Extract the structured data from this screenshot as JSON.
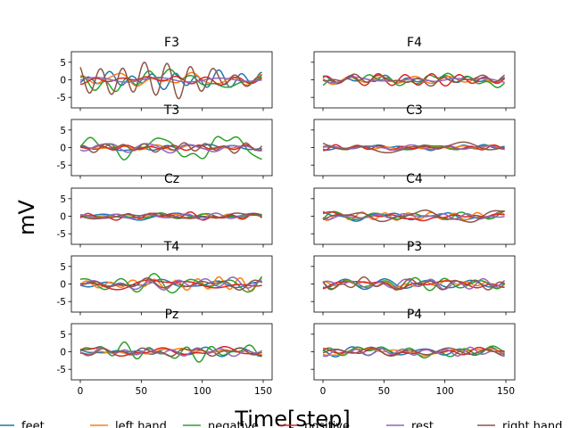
{
  "figure": {
    "ylabel": "mV",
    "xlabel": "Time[step]"
  },
  "legend": {
    "entries": [
      {
        "name": "feet",
        "color": "#1f77b4"
      },
      {
        "name": "left hand",
        "color": "#ff7f0e"
      },
      {
        "name": "negative",
        "color": "#2ca02c"
      },
      {
        "name": "positive",
        "color": "#d62728"
      },
      {
        "name": "rest",
        "color": "#9467bd"
      },
      {
        "name": "right hand",
        "color": "#8c564b"
      }
    ]
  },
  "chart_data": {
    "type": "line",
    "layout": "5x2 subplot grid, shared x and y axes",
    "panels": [
      "F3",
      "F4",
      "T3",
      "C3",
      "Cz",
      "C4",
      "T4",
      "P3",
      "Pz",
      "P4"
    ],
    "x": {
      "range": [
        0,
        150
      ],
      "ticks": [
        0,
        50,
        100,
        150
      ]
    },
    "y": {
      "range": [
        -8,
        8
      ],
      "ticks": [
        -5,
        0,
        5
      ]
    },
    "series_names": [
      "feet",
      "left hand",
      "negative",
      "positive",
      "rest",
      "right hand"
    ],
    "amplitude_by_panel": {
      "F3": [
        1.8,
        1.6,
        2.2,
        1.2,
        1.3,
        3.2
      ],
      "F4": [
        1.0,
        1.0,
        1.4,
        1.3,
        1.0,
        1.2
      ],
      "T3": [
        1.1,
        1.3,
        2.8,
        1.2,
        1.4,
        1.6
      ],
      "C3": [
        0.7,
        0.7,
        0.8,
        0.6,
        0.6,
        1.2
      ],
      "Cz": [
        0.8,
        0.7,
        0.9,
        1.2,
        0.6,
        0.7
      ],
      "C4": [
        1.0,
        1.0,
        1.2,
        1.0,
        0.9,
        1.3
      ],
      "T4": [
        1.5,
        1.4,
        2.2,
        1.3,
        1.6,
        1.8
      ],
      "P3": [
        1.1,
        1.2,
        1.2,
        1.2,
        1.1,
        1.4
      ],
      "Pz": [
        1.0,
        1.0,
        2.4,
        1.0,
        0.9,
        1.0
      ],
      "P4": [
        0.9,
        1.0,
        1.6,
        1.0,
        0.8,
        1.0
      ]
    }
  }
}
